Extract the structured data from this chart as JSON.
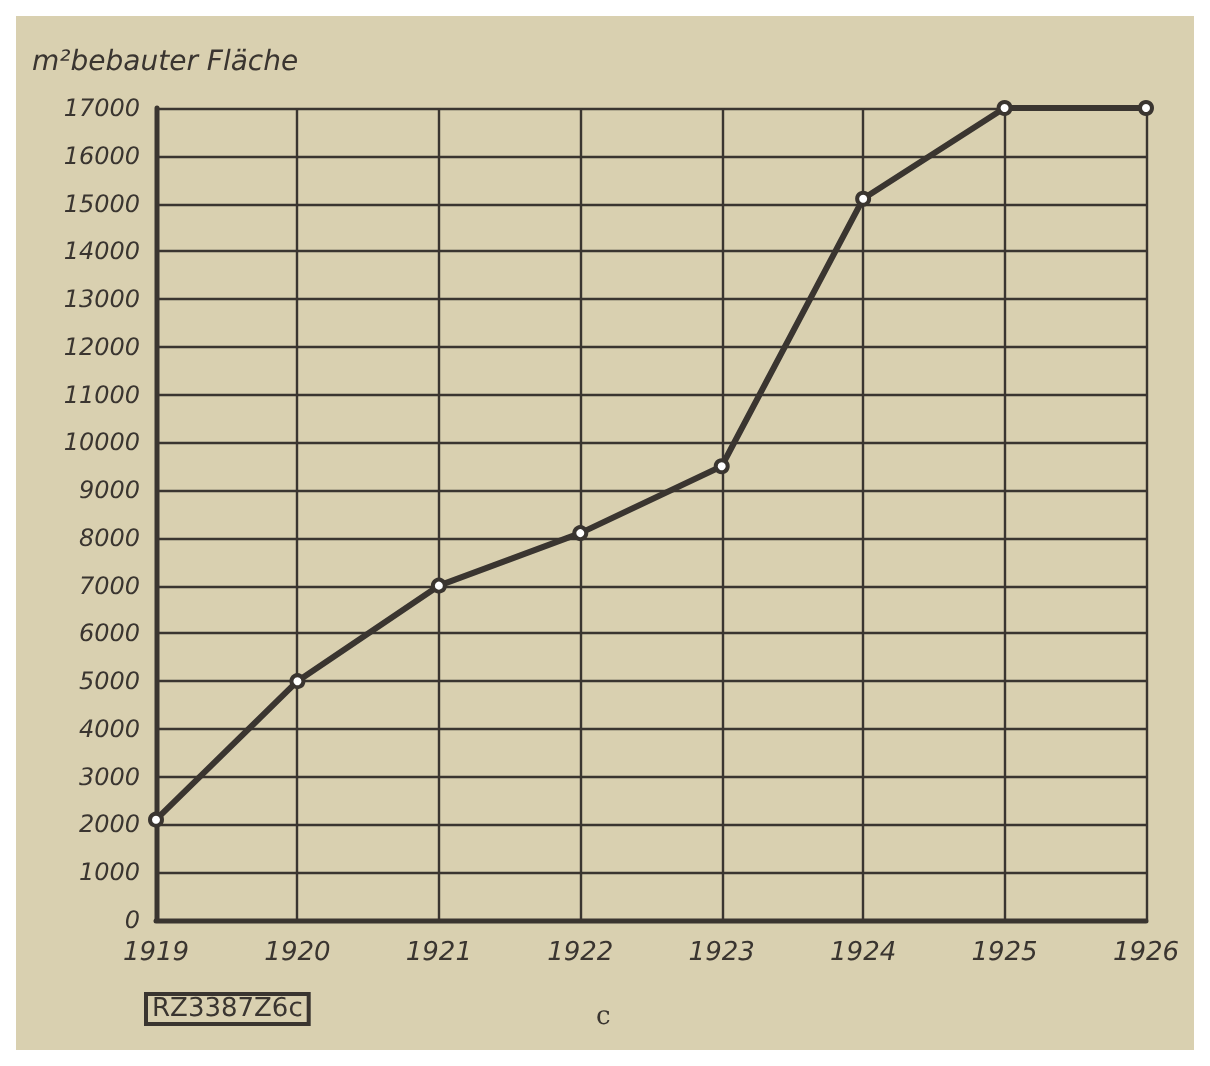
{
  "chart_data": {
    "type": "line",
    "ylabel": "m²bebauter Fläche",
    "x": [
      1919,
      1920,
      1921,
      1922,
      1923,
      1924,
      1925,
      1926
    ],
    "series": [
      {
        "color": "#3a3530",
        "values": [
          2100,
          5000,
          7000,
          8100,
          9500,
          15100,
          17000,
          17000
        ]
      }
    ],
    "xlim": [
      1919,
      1926
    ],
    "xticks": [
      1919,
      1920,
      1921,
      1922,
      1923,
      1924,
      1925,
      1926
    ],
    "ylim": [
      0,
      17000
    ],
    "yticks": [
      0,
      1000,
      2000,
      3000,
      4000,
      5000,
      6000,
      7000,
      8000,
      9000,
      10000,
      11000,
      12000,
      13000,
      14000,
      15000,
      16000,
      17000
    ],
    "grid": true,
    "marker": "circle",
    "line_style": "solid",
    "annotations": [
      "RZ3387Z6c",
      "c"
    ]
  }
}
